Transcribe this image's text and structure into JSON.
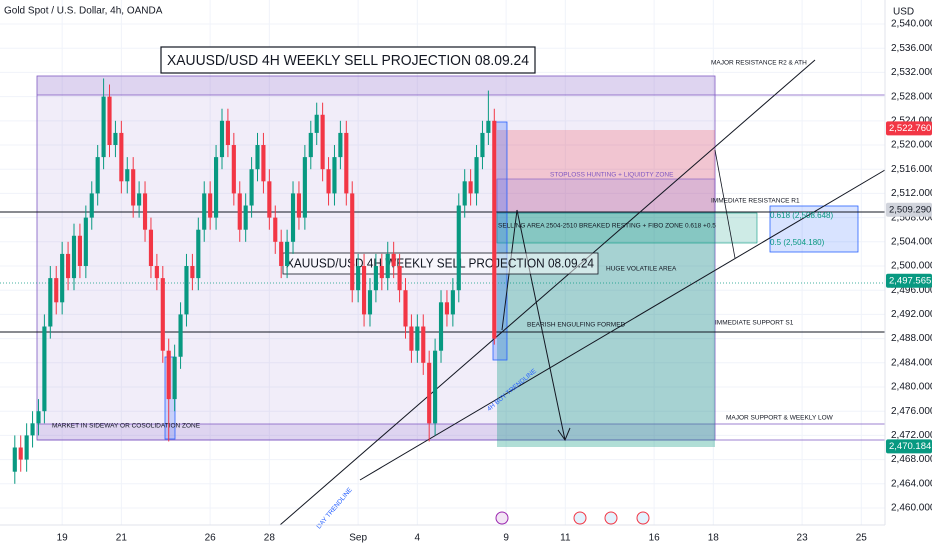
{
  "chart_data": {
    "type": "candlestick",
    "title": "Gold Spot / U.S. Dollar, 4h, OANDA",
    "currency": "USD",
    "up_color": "#089981",
    "down_color": "#f23645",
    "xlim": [
      -2.1,
      27.8
    ],
    "ylim": [
      2457.19,
      2543.97
    ],
    "xticks": [
      {
        "value": 0,
        "label": "19"
      },
      {
        "value": 2,
        "label": "21"
      },
      {
        "value": 5,
        "label": "26"
      },
      {
        "value": 7,
        "label": "28"
      },
      {
        "value": 10,
        "label": "Sep"
      },
      {
        "value": 12,
        "label": "4"
      },
      {
        "value": 15,
        "label": "9"
      },
      {
        "value": 17,
        "label": "11"
      },
      {
        "value": 20,
        "label": "16"
      },
      {
        "value": 22,
        "label": "18"
      },
      {
        "value": 25,
        "label": "23"
      },
      {
        "value": 27,
        "label": "25"
      }
    ],
    "yticks": [
      {
        "value": 2460,
        "label": "2,460.000"
      },
      {
        "value": 2464,
        "label": "2,464.000"
      },
      {
        "value": 2468,
        "label": "2,468.000"
      },
      {
        "value": 2472,
        "label": "2,472.000"
      },
      {
        "value": 2476,
        "label": "2,476.000"
      },
      {
        "value": 2480,
        "label": "2,480.000"
      },
      {
        "value": 2484,
        "label": "2,484.000"
      },
      {
        "value": 2488,
        "label": "2,488.000"
      },
      {
        "value": 2492,
        "label": "2,492.000"
      },
      {
        "value": 2496,
        "label": "2,496.000"
      },
      {
        "value": 2500,
        "label": "2,500.000"
      },
      {
        "value": 2504,
        "label": "2,504.000"
      },
      {
        "value": 2508,
        "label": "2,508.000"
      },
      {
        "value": 2512,
        "label": "2,512.000"
      },
      {
        "value": 2516,
        "label": "2,516.000"
      },
      {
        "value": 2520,
        "label": "2,520.000"
      },
      {
        "value": 2524,
        "label": "2,524.000"
      },
      {
        "value": 2528,
        "label": "2,528.000"
      },
      {
        "value": 2532,
        "label": "2,532.000"
      },
      {
        "value": 2536,
        "label": "2,536.000"
      },
      {
        "value": 2540,
        "label": "2,540.000"
      }
    ],
    "x": [
      -1.6,
      -1.4,
      -1.2,
      -1.0,
      -0.8,
      -0.6,
      -0.4,
      -0.2,
      0,
      0.2,
      0.4,
      0.6,
      0.8,
      1.0,
      1.2,
      1.4,
      1.6,
      1.8,
      2.0,
      2.2,
      2.4,
      2.6,
      2.8,
      3.0,
      3.2,
      3.4,
      3.6,
      3.8,
      4.0,
      4.2,
      4.4,
      4.6,
      4.8,
      5.0,
      5.2,
      5.4,
      5.6,
      5.8,
      6.0,
      6.2,
      6.4,
      6.6,
      6.8,
      7.0,
      7.2,
      7.4,
      7.6,
      7.8,
      8.0,
      8.2,
      8.4,
      8.6,
      8.8,
      9.0,
      9.2,
      9.4,
      9.6,
      9.8,
      10.0,
      10.2,
      10.4,
      10.6,
      10.8,
      11.0,
      11.2,
      11.4,
      11.6,
      11.8,
      12.0,
      12.2,
      12.4,
      12.6,
      12.8,
      13.0,
      13.2,
      13.4,
      13.6,
      13.8,
      14.0,
      14.2,
      14.4,
      14.6
    ],
    "open": [
      2466,
      2470,
      2468,
      2472,
      2474,
      2476,
      2490,
      2498,
      2494,
      2502,
      2498,
      2505,
      2500,
      2508,
      2512,
      2518,
      2528,
      2520,
      2522,
      2514,
      2516,
      2510,
      2512,
      2506,
      2500,
      2498,
      2486,
      2478,
      2485,
      2492,
      2500,
      2498,
      2506,
      2512,
      2508,
      2518,
      2524,
      2520,
      2512,
      2506,
      2510,
      2516,
      2520,
      2514,
      2508,
      2504,
      2500,
      2504,
      2512,
      2508,
      2518,
      2522,
      2525,
      2516,
      2512,
      2518,
      2522,
      2512,
      2496,
      2500,
      2492,
      2496,
      2500,
      2498,
      2502,
      2500,
      2496,
      2490,
      2486,
      2490,
      2484,
      2474,
      2486,
      2494,
      2492,
      2496,
      2510,
      2514,
      2512,
      2518,
      2522,
      2524
    ],
    "high": [
      2472,
      2472,
      2474,
      2476,
      2478,
      2492,
      2500,
      2500,
      2504,
      2504,
      2507,
      2507,
      2510,
      2514,
      2520,
      2531,
      2530,
      2524,
      2524,
      2518,
      2518,
      2514,
      2514,
      2508,
      2502,
      2500,
      2488,
      2487,
      2494,
      2502,
      2502,
      2508,
      2514,
      2514,
      2520,
      2526,
      2526,
      2522,
      2514,
      2512,
      2518,
      2522,
      2522,
      2516,
      2510,
      2506,
      2506,
      2514,
      2514,
      2520,
      2524,
      2527,
      2527,
      2518,
      2520,
      2524,
      2524,
      2514,
      2502,
      2502,
      2498,
      2502,
      2502,
      2504,
      2504,
      2502,
      2498,
      2492,
      2492,
      2492,
      2486,
      2488,
      2496,
      2496,
      2498,
      2512,
      2516,
      2516,
      2520,
      2524,
      2529,
      2526
    ],
    "low": [
      2464,
      2466,
      2466,
      2470,
      2472,
      2474,
      2488,
      2492,
      2492,
      2496,
      2496,
      2498,
      2498,
      2506,
      2510,
      2516,
      2518,
      2518,
      2512,
      2512,
      2508,
      2508,
      2504,
      2498,
      2496,
      2484,
      2471,
      2476,
      2483,
      2490,
      2496,
      2496,
      2504,
      2506,
      2506,
      2516,
      2518,
      2510,
      2504,
      2504,
      2508,
      2514,
      2512,
      2506,
      2502,
      2498,
      2498,
      2502,
      2506,
      2506,
      2516,
      2520,
      2514,
      2510,
      2510,
      2516,
      2510,
      2494,
      2494,
      2490,
      2490,
      2494,
      2496,
      2496,
      2498,
      2494,
      2488,
      2484,
      2484,
      2482,
      2471,
      2472,
      2484,
      2490,
      2490,
      2494,
      2508,
      2510,
      2510,
      2516,
      2520,
      2487
    ],
    "close": [
      2470,
      2468,
      2472,
      2474,
      2476,
      2490,
      2498,
      2494,
      2502,
      2498,
      2505,
      2500,
      2508,
      2512,
      2518,
      2528,
      2520,
      2522,
      2514,
      2516,
      2510,
      2512,
      2506,
      2500,
      2498,
      2486,
      2478,
      2485,
      2492,
      2500,
      2498,
      2506,
      2512,
      2508,
      2518,
      2524,
      2520,
      2512,
      2506,
      2510,
      2516,
      2520,
      2514,
      2508,
      2504,
      2500,
      2504,
      2512,
      2508,
      2518,
      2522,
      2525,
      2516,
      2512,
      2518,
      2522,
      2512,
      2496,
      2500,
      2492,
      2496,
      2500,
      2498,
      2502,
      2500,
      2496,
      2490,
      2486,
      2490,
      2484,
      2474,
      2486,
      2494,
      2492,
      2496,
      2510,
      2514,
      2512,
      2518,
      2522,
      2524,
      2488
    ],
    "price_labels": [
      {
        "value": 2522.76,
        "label": "2,522.760",
        "color": "#f23645",
        "text_color": "#ffffff"
      },
      {
        "value": 2509.29,
        "label": "2,509.290",
        "color": "#d1d4dc",
        "text_color": "#131722"
      },
      {
        "value": 2497.565,
        "label": "2,497.565",
        "color": "#089981",
        "text_color": "#ffffff"
      },
      {
        "value": 2470.184,
        "label": "2,470.184",
        "color": "#089981",
        "text_color": "#ffffff"
      }
    ],
    "annotations": {
      "title_box": "XAUUSD/USD 4H WEEKLY SELL PROJECTION 08.09.24",
      "title_mid": "XAUUSD/USD 4H WEEKLY SELL PROJECTION 08.09.24",
      "r2": "MAJOR RESISTANCE R2 & ATH",
      "stoploss": "STOPLOSS HUNTING + LIQUIDTY ZONE",
      "r1": "IMMEDIATE RESISTANCE R1",
      "fib618": "0.618 (2,508.648)",
      "fib5": "0.5 (2,504.180)",
      "selling": "SELLING AREA 2504-2510 BREAKED RESTING + FIBO ZONE 0.618 +0.5",
      "volatile": "HUGE VOLATILE AREA",
      "engulfing": "BEARISH ENGULFING FORMED",
      "s1": "IMMEDIATE SUPPORT S1",
      "buy_trend": "4H BUY TRENDLINE",
      "major_support": "MAJOR SUPPORT & WEEKLY LOW",
      "sideway": "MARKET IN SIDEWAY OR COSOLIDATION ZONE",
      "day_trend": "DAY TRENDLINE"
    }
  }
}
